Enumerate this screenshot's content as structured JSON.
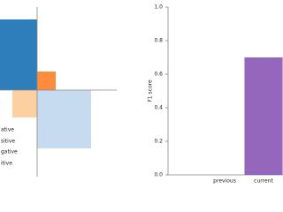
{
  "legend": {
    "items": [
      "ative",
      "sitive",
      "gative",
      "itive"
    ]
  },
  "chart_data": {
    "type": "bar",
    "y_label": "F1 score",
    "categories": [
      "previous",
      "current"
    ],
    "values": [
      0,
      0.7
    ],
    "color": "#9467bd",
    "ylim": [
      0,
      1
    ],
    "yticks": [
      {
        "value": 0,
        "label": "0.0"
      },
      0.2,
      0.4,
      0.6,
      0.8,
      {
        "value": 1,
        "label": "1.0"
      }
    ]
  }
}
